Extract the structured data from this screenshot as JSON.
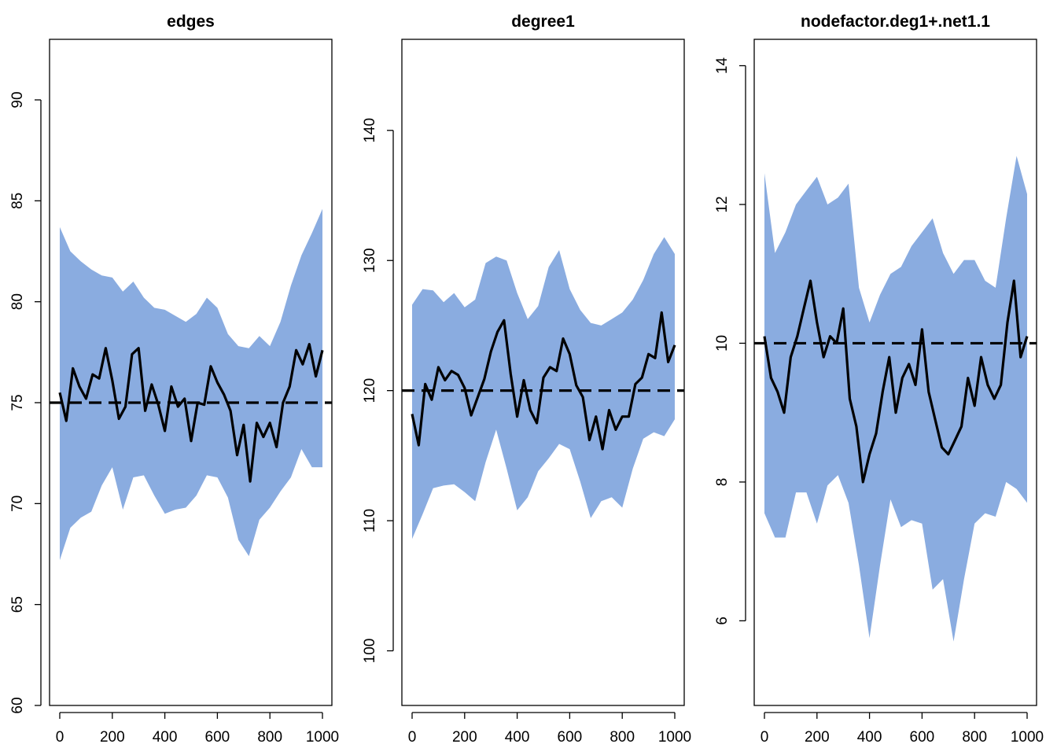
{
  "colors": {
    "band": "#8aace0",
    "line": "#000000",
    "target": "#000000"
  },
  "chart_data": [
    {
      "type": "area",
      "title": "edges",
      "xlabel": "",
      "ylabel": "",
      "xlim": [
        0,
        1000
      ],
      "ylim": [
        60,
        93
      ],
      "xticks": [
        0,
        200,
        400,
        600,
        800,
        1000
      ],
      "yticks": [
        60,
        65,
        70,
        75,
        80,
        85,
        90
      ],
      "target": 75,
      "band": {
        "x": [
          0,
          40,
          80,
          120,
          160,
          200,
          240,
          280,
          320,
          360,
          400,
          440,
          480,
          520,
          560,
          600,
          640,
          680,
          720,
          760,
          800,
          840,
          880,
          920,
          960,
          1000
        ],
        "upper": [
          83.7,
          82.5,
          82.0,
          81.6,
          81.3,
          81.2,
          80.5,
          81.0,
          80.2,
          79.7,
          79.6,
          79.3,
          79.0,
          79.4,
          80.2,
          79.7,
          78.4,
          77.8,
          77.7,
          78.3,
          77.8,
          79.0,
          80.8,
          82.3,
          83.4,
          84.6
        ],
        "lower": [
          67.2,
          68.8,
          69.3,
          69.6,
          70.9,
          71.8,
          69.7,
          71.3,
          71.4,
          70.4,
          69.5,
          69.7,
          69.8,
          70.4,
          71.4,
          71.3,
          70.3,
          68.2,
          67.4,
          69.2,
          69.8,
          70.6,
          71.3,
          72.7,
          71.8,
          71.8
        ]
      },
      "series": {
        "x": [
          0,
          25,
          50,
          75,
          100,
          125,
          150,
          175,
          200,
          225,
          250,
          275,
          300,
          325,
          350,
          375,
          400,
          425,
          450,
          475,
          500,
          525,
          550,
          575,
          600,
          625,
          650,
          675,
          700,
          725,
          750,
          775,
          800,
          825,
          850,
          875,
          900,
          925,
          950,
          975,
          1000
        ],
        "y": [
          75.5,
          74.1,
          76.7,
          75.8,
          75.2,
          76.4,
          76.2,
          77.7,
          76.1,
          74.2,
          74.8,
          77.4,
          77.7,
          74.6,
          75.9,
          74.9,
          73.6,
          75.8,
          74.8,
          75.2,
          73.1,
          75.0,
          74.9,
          76.8,
          76.0,
          75.4,
          74.6,
          72.4,
          73.9,
          71.1,
          74.0,
          73.3,
          74.0,
          72.8,
          75.0,
          75.8,
          77.6,
          76.9,
          77.9,
          76.3,
          77.6
        ]
      }
    },
    {
      "type": "area",
      "title": "degree1",
      "xlabel": "",
      "ylabel": "",
      "xlim": [
        0,
        1000
      ],
      "ylim": [
        95.8,
        147
      ],
      "xticks": [
        0,
        200,
        400,
        600,
        800,
        1000
      ],
      "yticks": [
        100,
        110,
        120,
        130,
        140
      ],
      "target": 120,
      "band": {
        "x": [
          0,
          40,
          80,
          120,
          160,
          200,
          240,
          280,
          320,
          360,
          400,
          440,
          480,
          520,
          560,
          600,
          640,
          680,
          720,
          760,
          800,
          840,
          880,
          920,
          960,
          1000
        ],
        "upper": [
          126.6,
          127.8,
          127.7,
          126.8,
          127.5,
          126.4,
          127.0,
          129.8,
          130.3,
          130.0,
          127.5,
          125.5,
          126.5,
          129.5,
          130.8,
          127.8,
          126.2,
          125.2,
          125.0,
          125.5,
          126.0,
          127.0,
          128.5,
          130.5,
          131.8,
          130.5
        ],
        "lower": [
          108.6,
          110.5,
          112.5,
          112.7,
          112.8,
          112.2,
          111.5,
          114.5,
          117.0,
          114.0,
          110.8,
          111.8,
          113.8,
          114.8,
          115.9,
          115.5,
          113.0,
          110.2,
          111.5,
          111.8,
          111.0,
          114.0,
          116.3,
          116.8,
          116.5,
          117.8
        ]
      },
      "series": {
        "x": [
          0,
          25,
          50,
          75,
          100,
          125,
          150,
          175,
          200,
          225,
          250,
          275,
          300,
          325,
          350,
          375,
          400,
          425,
          450,
          475,
          500,
          525,
          550,
          575,
          600,
          625,
          650,
          675,
          700,
          725,
          750,
          775,
          800,
          825,
          850,
          875,
          900,
          925,
          950,
          975,
          1000
        ],
        "y": [
          118.2,
          115.8,
          120.5,
          119.3,
          121.8,
          120.8,
          121.5,
          121.2,
          120.2,
          118.1,
          119.5,
          120.9,
          123.0,
          124.5,
          125.4,
          121.3,
          118.0,
          120.8,
          118.5,
          117.5,
          121.0,
          121.8,
          121.5,
          124.0,
          122.8,
          120.4,
          119.5,
          116.2,
          118.0,
          115.5,
          118.5,
          117.0,
          118.0,
          118.0,
          120.5,
          121.0,
          122.8,
          122.5,
          126.0,
          122.2,
          123.5
        ]
      }
    },
    {
      "type": "area",
      "title": "nodefactor.deg1+.net1.1",
      "xlabel": "",
      "ylabel": "",
      "xlim": [
        0,
        1000
      ],
      "ylim": [
        4.78,
        14.38
      ],
      "xticks": [
        0,
        200,
        400,
        600,
        800,
        1000
      ],
      "yticks": [
        6,
        8,
        10,
        12,
        14
      ],
      "target": 10,
      "band": {
        "x": [
          0,
          40,
          80,
          120,
          160,
          200,
          240,
          280,
          320,
          360,
          400,
          440,
          480,
          520,
          560,
          600,
          640,
          680,
          720,
          760,
          800,
          840,
          880,
          920,
          960,
          1000
        ],
        "upper": [
          12.45,
          11.3,
          11.6,
          12.0,
          12.2,
          12.4,
          12.0,
          12.1,
          12.3,
          10.8,
          10.3,
          10.7,
          11.0,
          11.1,
          11.4,
          11.6,
          11.8,
          11.3,
          11.0,
          11.2,
          11.2,
          10.9,
          10.8,
          11.8,
          12.7,
          12.15
        ],
        "lower": [
          7.55,
          7.2,
          7.2,
          7.85,
          7.85,
          7.4,
          7.95,
          8.1,
          7.7,
          6.8,
          5.75,
          6.8,
          7.75,
          7.35,
          7.45,
          7.4,
          6.45,
          6.6,
          5.7,
          6.6,
          7.4,
          7.55,
          7.5,
          8.0,
          7.9,
          7.7
        ]
      },
      "series": {
        "x": [
          0,
          25,
          50,
          75,
          100,
          125,
          150,
          175,
          200,
          225,
          250,
          275,
          300,
          325,
          350,
          375,
          400,
          425,
          450,
          475,
          500,
          525,
          550,
          575,
          600,
          625,
          650,
          675,
          700,
          725,
          750,
          775,
          800,
          825,
          850,
          875,
          900,
          925,
          950,
          975,
          1000
        ],
        "y": [
          10.1,
          9.5,
          9.3,
          9.0,
          9.8,
          10.1,
          10.5,
          10.9,
          10.3,
          9.8,
          10.1,
          10.0,
          10.5,
          9.2,
          8.8,
          8.0,
          8.4,
          8.7,
          9.3,
          9.8,
          9.0,
          9.5,
          9.7,
          9.4,
          10.2,
          9.3,
          8.9,
          8.5,
          8.4,
          8.6,
          8.8,
          9.5,
          9.1,
          9.8,
          9.4,
          9.2,
          9.4,
          10.3,
          10.9,
          9.8,
          10.1
        ]
      }
    }
  ]
}
